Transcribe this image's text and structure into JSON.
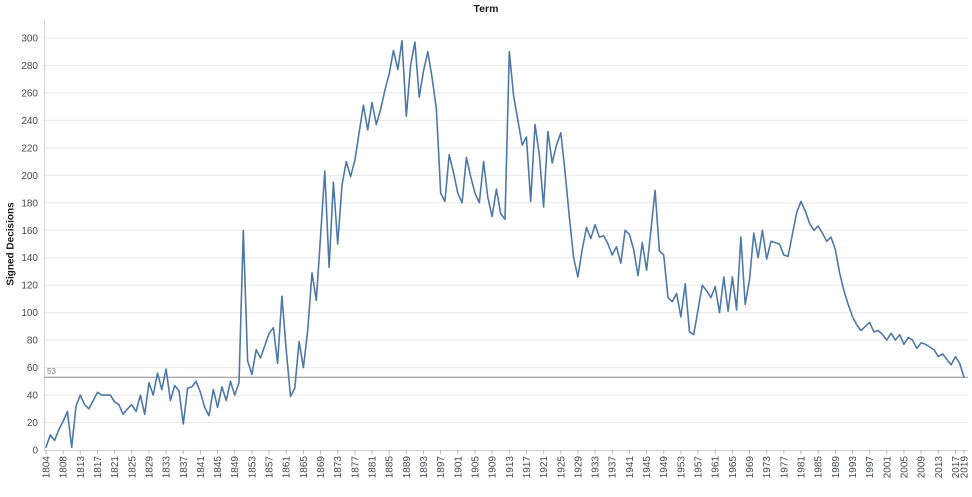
{
  "chart_data": {
    "type": "line",
    "title": "Term",
    "xlabel": "",
    "ylabel": "Signed Decisions",
    "ylim": [
      0,
      300
    ],
    "ytick_step": 20,
    "grid": true,
    "legend": "none",
    "x_label_every": 4,
    "reference_line": {
      "value": 53,
      "label": "53",
      "color": "#8f8f8f"
    },
    "series": [
      {
        "name": "Signed Decisions",
        "color": "#4e79a7",
        "x": [
          1804,
          1805,
          1806,
          1807,
          1808,
          1809,
          1810,
          1812,
          1813,
          1814,
          1815,
          1816,
          1817,
          1818,
          1819,
          1820,
          1821,
          1822,
          1823,
          1824,
          1825,
          1826,
          1827,
          1828,
          1829,
          1830,
          1831,
          1832,
          1833,
          1834,
          1835,
          1836,
          1837,
          1838,
          1839,
          1840,
          1841,
          1842,
          1843,
          1844,
          1845,
          1846,
          1847,
          1848,
          1849,
          1850,
          1851,
          1852,
          1853,
          1854,
          1855,
          1856,
          1857,
          1858,
          1859,
          1860,
          1861,
          1862,
          1863,
          1864,
          1865,
          1866,
          1867,
          1868,
          1869,
          1870,
          1871,
          1872,
          1873,
          1874,
          1875,
          1876,
          1877,
          1878,
          1879,
          1880,
          1881,
          1882,
          1883,
          1884,
          1885,
          1886,
          1887,
          1888,
          1889,
          1890,
          1891,
          1892,
          1893,
          1894,
          1895,
          1896,
          1897,
          1898,
          1899,
          1900,
          1901,
          1902,
          1903,
          1904,
          1905,
          1906,
          1907,
          1908,
          1909,
          1910,
          1911,
          1912,
          1913,
          1914,
          1915,
          1916,
          1917,
          1918,
          1919,
          1920,
          1921,
          1922,
          1923,
          1924,
          1925,
          1926,
          1927,
          1928,
          1929,
          1930,
          1931,
          1932,
          1933,
          1934,
          1935,
          1936,
          1937,
          1938,
          1939,
          1940,
          1941,
          1942,
          1943,
          1944,
          1945,
          1946,
          1947,
          1948,
          1949,
          1950,
          1951,
          1952,
          1953,
          1954,
          1955,
          1956,
          1957,
          1958,
          1959,
          1960,
          1961,
          1962,
          1963,
          1964,
          1965,
          1966,
          1967,
          1968,
          1969,
          1970,
          1971,
          1972,
          1973,
          1974,
          1975,
          1976,
          1977,
          1978,
          1979,
          1980,
          1981,
          1982,
          1983,
          1984,
          1985,
          1986,
          1987,
          1988,
          1989,
          1990,
          1991,
          1992,
          1993,
          1994,
          1995,
          1996,
          1997,
          1998,
          1999,
          2000,
          2001,
          2002,
          2003,
          2004,
          2005,
          2006,
          2007,
          2008,
          2009,
          2010,
          2011,
          2012,
          2013,
          2014,
          2015,
          2016,
          2017,
          2018,
          2019
        ],
        "values": [
          2,
          11,
          7,
          15,
          21,
          28,
          2,
          32,
          40,
          33,
          30,
          36,
          42,
          40,
          40,
          40,
          35,
          33,
          26,
          30,
          33,
          28,
          40,
          26,
          49,
          40,
          56,
          44,
          59,
          36,
          47,
          43,
          19,
          45,
          46,
          50,
          42,
          31,
          25,
          44,
          31,
          46,
          36,
          50,
          40,
          49,
          160,
          65,
          55,
          73,
          67,
          76,
          85,
          89,
          63,
          112,
          73,
          39,
          45,
          79,
          60,
          87,
          129,
          109,
          155,
          203,
          133,
          195,
          150,
          193,
          210,
          199,
          211,
          231,
          251,
          233,
          253,
          237,
          248,
          262,
          274,
          291,
          277,
          298,
          243,
          280,
          297,
          257,
          276,
          290,
          271,
          248,
          187,
          181,
          215,
          202,
          187,
          180,
          213,
          199,
          187,
          180,
          210,
          184,
          170,
          190,
          172,
          168,
          290,
          258,
          240,
          222,
          228,
          181,
          237,
          215,
          177,
          232,
          209,
          222,
          231,
          202,
          170,
          140,
          126,
          146,
          162,
          154,
          164,
          155,
          156,
          150,
          142,
          148,
          136,
          160,
          157,
          146,
          127,
          151,
          131,
          160,
          189,
          145,
          142,
          111,
          108,
          114,
          97,
          121,
          86,
          84,
          102,
          120,
          116,
          111,
          119,
          100,
          126,
          101,
          126,
          102,
          155,
          106,
          124,
          158,
          140,
          160,
          139,
          152,
          151,
          150,
          142,
          141,
          157,
          173,
          181,
          174,
          165,
          160,
          163,
          158,
          152,
          155,
          146,
          129,
          116,
          106,
          97,
          91,
          87,
          90,
          93,
          86,
          87,
          84,
          80,
          85,
          80,
          84,
          77,
          82,
          80,
          74,
          78,
          77,
          75,
          73,
          68,
          70,
          66,
          62,
          68,
          63,
          53
        ]
      }
    ]
  },
  "colors": {
    "background": "#ffffff",
    "gridline": "#e8e8e8",
    "axis_line": "#d2d2d2",
    "tick_mark": "#b8b8b8",
    "tick_text": "#45484e",
    "title_text": "#1b1b1b",
    "reference_line": "#8f8f8f",
    "reference_label_text": "#7a7a7a",
    "series_line": "#4e79a7"
  }
}
